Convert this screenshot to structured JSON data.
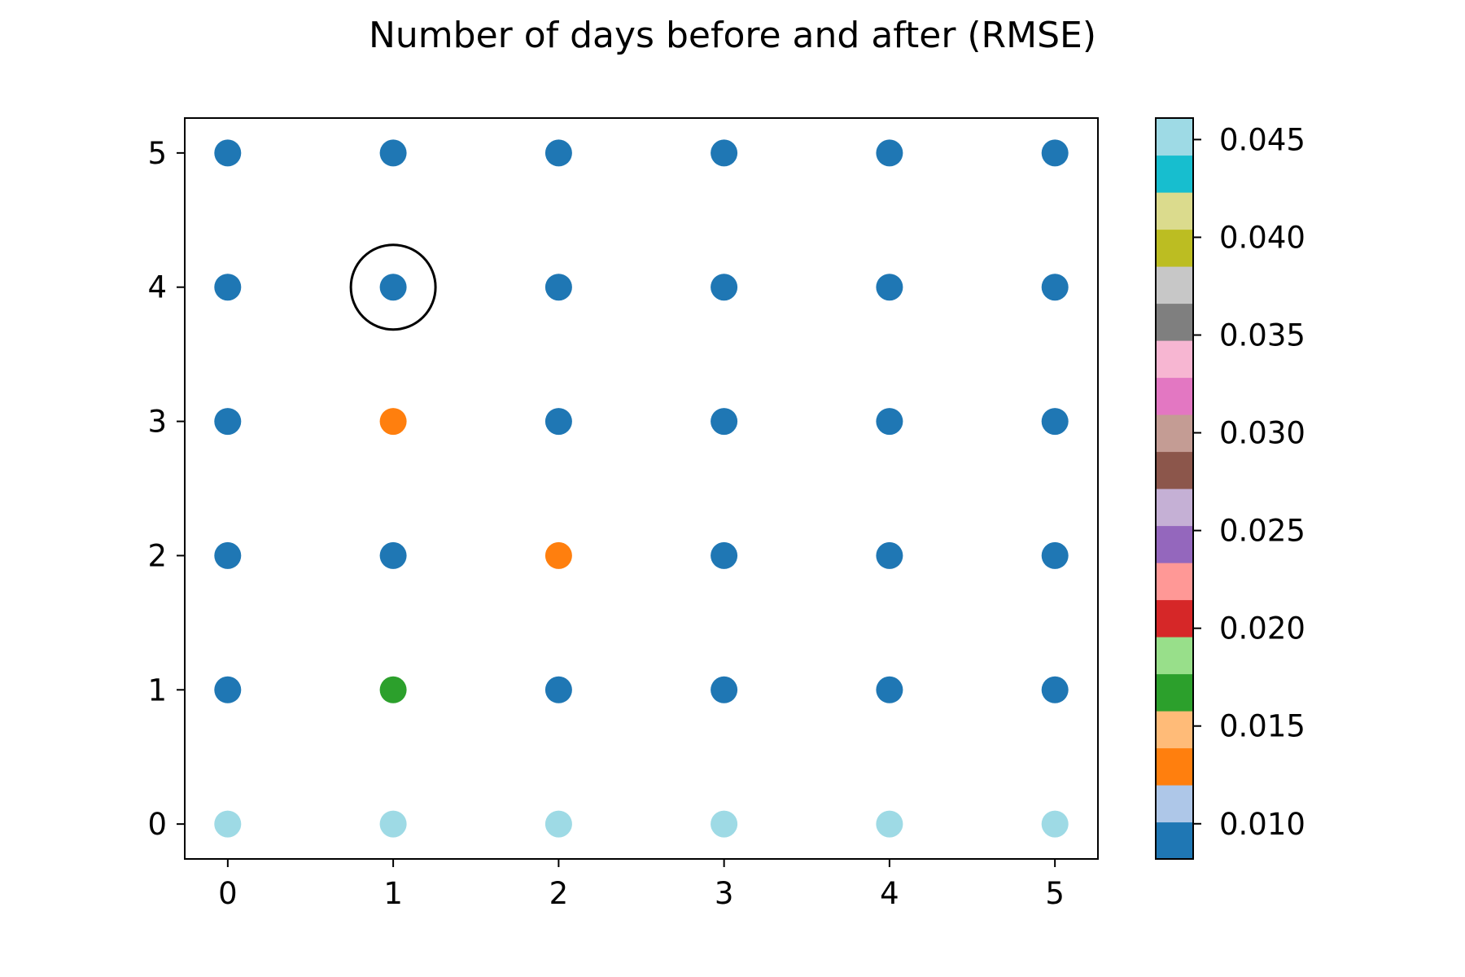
{
  "chart_data": {
    "type": "scatter",
    "title": "Number of days before and after (RMSE)",
    "xlabel": "",
    "ylabel": "",
    "xlim": [
      -0.26,
      5.26
    ],
    "ylim": [
      -0.26,
      5.26
    ],
    "xticks": [
      "0",
      "1",
      "2",
      "3",
      "4",
      "5"
    ],
    "yticks": [
      "0",
      "1",
      "2",
      "3",
      "4",
      "5"
    ],
    "grid": false,
    "colorbar": {
      "vmin": 0.0082,
      "vmax": 0.0461,
      "ticks": [
        {
          "value": 0.01,
          "label": "0.010"
        },
        {
          "value": 0.015,
          "label": "0.015"
        },
        {
          "value": 0.02,
          "label": "0.020"
        },
        {
          "value": 0.025,
          "label": "0.025"
        },
        {
          "value": 0.03,
          "label": "0.030"
        },
        {
          "value": 0.035,
          "label": "0.035"
        },
        {
          "value": 0.04,
          "label": "0.040"
        },
        {
          "value": 0.045,
          "label": "0.045"
        }
      ],
      "colors": [
        "#1f77b4",
        "#aec7e8",
        "#ff7f0e",
        "#ffbb78",
        "#2ca02c",
        "#98df8a",
        "#d62728",
        "#ff9896",
        "#9467bd",
        "#c5b0d5",
        "#8c564b",
        "#c49c94",
        "#e377c2",
        "#f7b6d2",
        "#7f7f7f",
        "#c7c7c7",
        "#bcbd22",
        "#dbdb8d",
        "#17becf",
        "#9edae5"
      ]
    },
    "highlight": {
      "x": 1,
      "y": 4
    },
    "points": [
      {
        "x": 0,
        "y": 0,
        "value": 0.045
      },
      {
        "x": 1,
        "y": 0,
        "value": 0.045
      },
      {
        "x": 2,
        "y": 0,
        "value": 0.045
      },
      {
        "x": 3,
        "y": 0,
        "value": 0.045
      },
      {
        "x": 4,
        "y": 0,
        "value": 0.045
      },
      {
        "x": 5,
        "y": 0,
        "value": 0.045
      },
      {
        "x": 0,
        "y": 1,
        "value": 0.01
      },
      {
        "x": 1,
        "y": 1,
        "value": 0.017
      },
      {
        "x": 2,
        "y": 1,
        "value": 0.009
      },
      {
        "x": 3,
        "y": 1,
        "value": 0.01
      },
      {
        "x": 4,
        "y": 1,
        "value": 0.009
      },
      {
        "x": 5,
        "y": 1,
        "value": 0.009
      },
      {
        "x": 0,
        "y": 2,
        "value": 0.01
      },
      {
        "x": 1,
        "y": 2,
        "value": 0.009
      },
      {
        "x": 2,
        "y": 2,
        "value": 0.013
      },
      {
        "x": 3,
        "y": 2,
        "value": 0.009
      },
      {
        "x": 4,
        "y": 2,
        "value": 0.009
      },
      {
        "x": 5,
        "y": 2,
        "value": 0.01
      },
      {
        "x": 0,
        "y": 3,
        "value": 0.01
      },
      {
        "x": 1,
        "y": 3,
        "value": 0.013
      },
      {
        "x": 2,
        "y": 3,
        "value": 0.009
      },
      {
        "x": 3,
        "y": 3,
        "value": 0.009
      },
      {
        "x": 4,
        "y": 3,
        "value": 0.009
      },
      {
        "x": 5,
        "y": 3,
        "value": 0.01
      },
      {
        "x": 0,
        "y": 4,
        "value": 0.009
      },
      {
        "x": 1,
        "y": 4,
        "value": 0.009
      },
      {
        "x": 2,
        "y": 4,
        "value": 0.009
      },
      {
        "x": 3,
        "y": 4,
        "value": 0.009
      },
      {
        "x": 4,
        "y": 4,
        "value": 0.01
      },
      {
        "x": 5,
        "y": 4,
        "value": 0.009
      },
      {
        "x": 0,
        "y": 5,
        "value": 0.009
      },
      {
        "x": 1,
        "y": 5,
        "value": 0.009
      },
      {
        "x": 2,
        "y": 5,
        "value": 0.009
      },
      {
        "x": 3,
        "y": 5,
        "value": 0.01
      },
      {
        "x": 4,
        "y": 5,
        "value": 0.009
      },
      {
        "x": 5,
        "y": 5,
        "value": 0.009
      }
    ]
  }
}
